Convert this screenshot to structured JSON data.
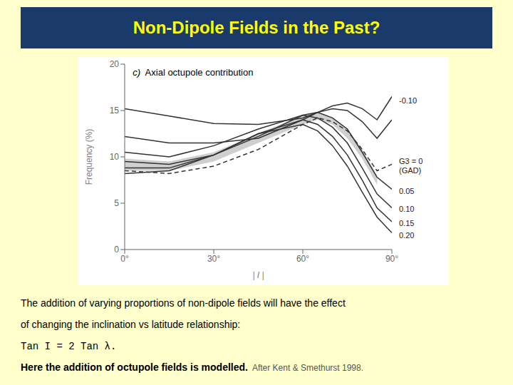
{
  "chart_data": {
    "type": "line",
    "title": "Non-Dipole Fields in the Past?",
    "title_color": "#FFFF00",
    "title_background": "#1a3a6b",
    "background": "#FFFFCC",
    "plot_background": "#FFFFFF",
    "panel_label": "c)",
    "subtitle": "  Axial octupole contribution",
    "x_label": "| I |",
    "y_label": "Frequency (%)",
    "xlim": [
      0,
      90
    ],
    "ylim": [
      0,
      20
    ],
    "xticks": [
      {
        "value": 0,
        "label": "0°"
      },
      {
        "value": 30,
        "label": "30°"
      },
      {
        "value": 60,
        "label": "60°"
      },
      {
        "value": 90,
        "label": "90°"
      }
    ],
    "yticks": [
      0,
      5,
      10,
      15,
      20
    ],
    "grid": false,
    "x": [
      0,
      15,
      30,
      45,
      60,
      65,
      70,
      75,
      80,
      85,
      90
    ],
    "series": [
      {
        "color": "#333333",
        "line_style": "solid",
        "values": [
          15.2,
          14.4,
          13.6,
          13.5,
          14.2,
          14.8,
          15.5,
          15.8,
          15.2,
          14.0,
          16.5
        ]
      },
      {
        "color": "#333333",
        "line_style": "solid",
        "values": [
          12.2,
          11.5,
          11.5,
          12.0,
          14.0,
          14.8,
          15.2,
          15.0,
          13.8,
          12.0,
          14.0
        ]
      },
      {
        "color": "#333333",
        "line_style": "dashed",
        "values": [
          8.5,
          8.2,
          9.0,
          10.8,
          13.5,
          14.2,
          13.8,
          12.8,
          10.8,
          8.5,
          9.2
        ]
      },
      {
        "color": "#333333",
        "line_style": "solid",
        "values": [
          9.5,
          9.2,
          10.2,
          12.2,
          14.5,
          14.8,
          14.2,
          13.0,
          10.5,
          7.8,
          6.5
        ]
      },
      {
        "color": "#333333",
        "line_style": "solid",
        "values": [
          10.5,
          10.0,
          11.2,
          13.0,
          14.5,
          14.2,
          13.2,
          11.5,
          8.8,
          6.0,
          4.5
        ]
      },
      {
        "color": "#333333",
        "line_style": "solid",
        "values": [
          8.8,
          8.8,
          10.2,
          12.5,
          14.0,
          13.5,
          12.2,
          10.2,
          7.5,
          4.5,
          3.0
        ]
      },
      {
        "color": "#333333",
        "line_style": "solid",
        "values": [
          8.2,
          8.5,
          10.2,
          12.5,
          13.5,
          12.8,
          11.2,
          9.0,
          6.2,
          3.5,
          1.8
        ]
      }
    ],
    "band": {
      "type": "area",
      "color": "#888888",
      "x": [
        0,
        15,
        30,
        45,
        60,
        65,
        70,
        75,
        80,
        85
      ],
      "upper": [
        9.8,
        9.5,
        10.5,
        12.5,
        14.5,
        14.8,
        14.2,
        13.0,
        10.8,
        8.0
      ],
      "lower": [
        8.5,
        8.5,
        9.5,
        11.5,
        13.5,
        14.0,
        13.5,
        12.0,
        9.8,
        7.0
      ]
    },
    "annotations": [
      {
        "text": "-0.10",
        "x": 90,
        "y": 16.0,
        "color": "#222222"
      },
      {
        "text": "G3 = 0\n(GAD)",
        "x": 90,
        "y": 9.0,
        "color": "#222222"
      },
      {
        "text": "0.05",
        "x": 90,
        "y": 6.2,
        "color": "#222222"
      },
      {
        "text": "0.10",
        "x": 90,
        "y": 4.3,
        "color": "#222222"
      },
      {
        "text": "0.15",
        "x": 90,
        "y": 2.8,
        "color": "#222222"
      },
      {
        "text": "0.20",
        "x": 90,
        "y": 1.5,
        "color": "#222222"
      }
    ],
    "notes": [
      [
        {
          "text": "The addition of varying proportions of non-dipole fields will have the effect"
        }
      ],
      [
        {
          "text": "of changing the inclination vs latitude relationship:"
        }
      ],
      [
        {
          "text": "Tan I = 2 Tan λ.",
          "font": "monospace"
        }
      ],
      [
        {
          "text": "Here the addition of octupole fields is modelled.",
          "weight": "bold"
        },
        {
          "text": "  After Kent & Smethurst 1998.",
          "color": "#555555"
        }
      ]
    ]
  }
}
